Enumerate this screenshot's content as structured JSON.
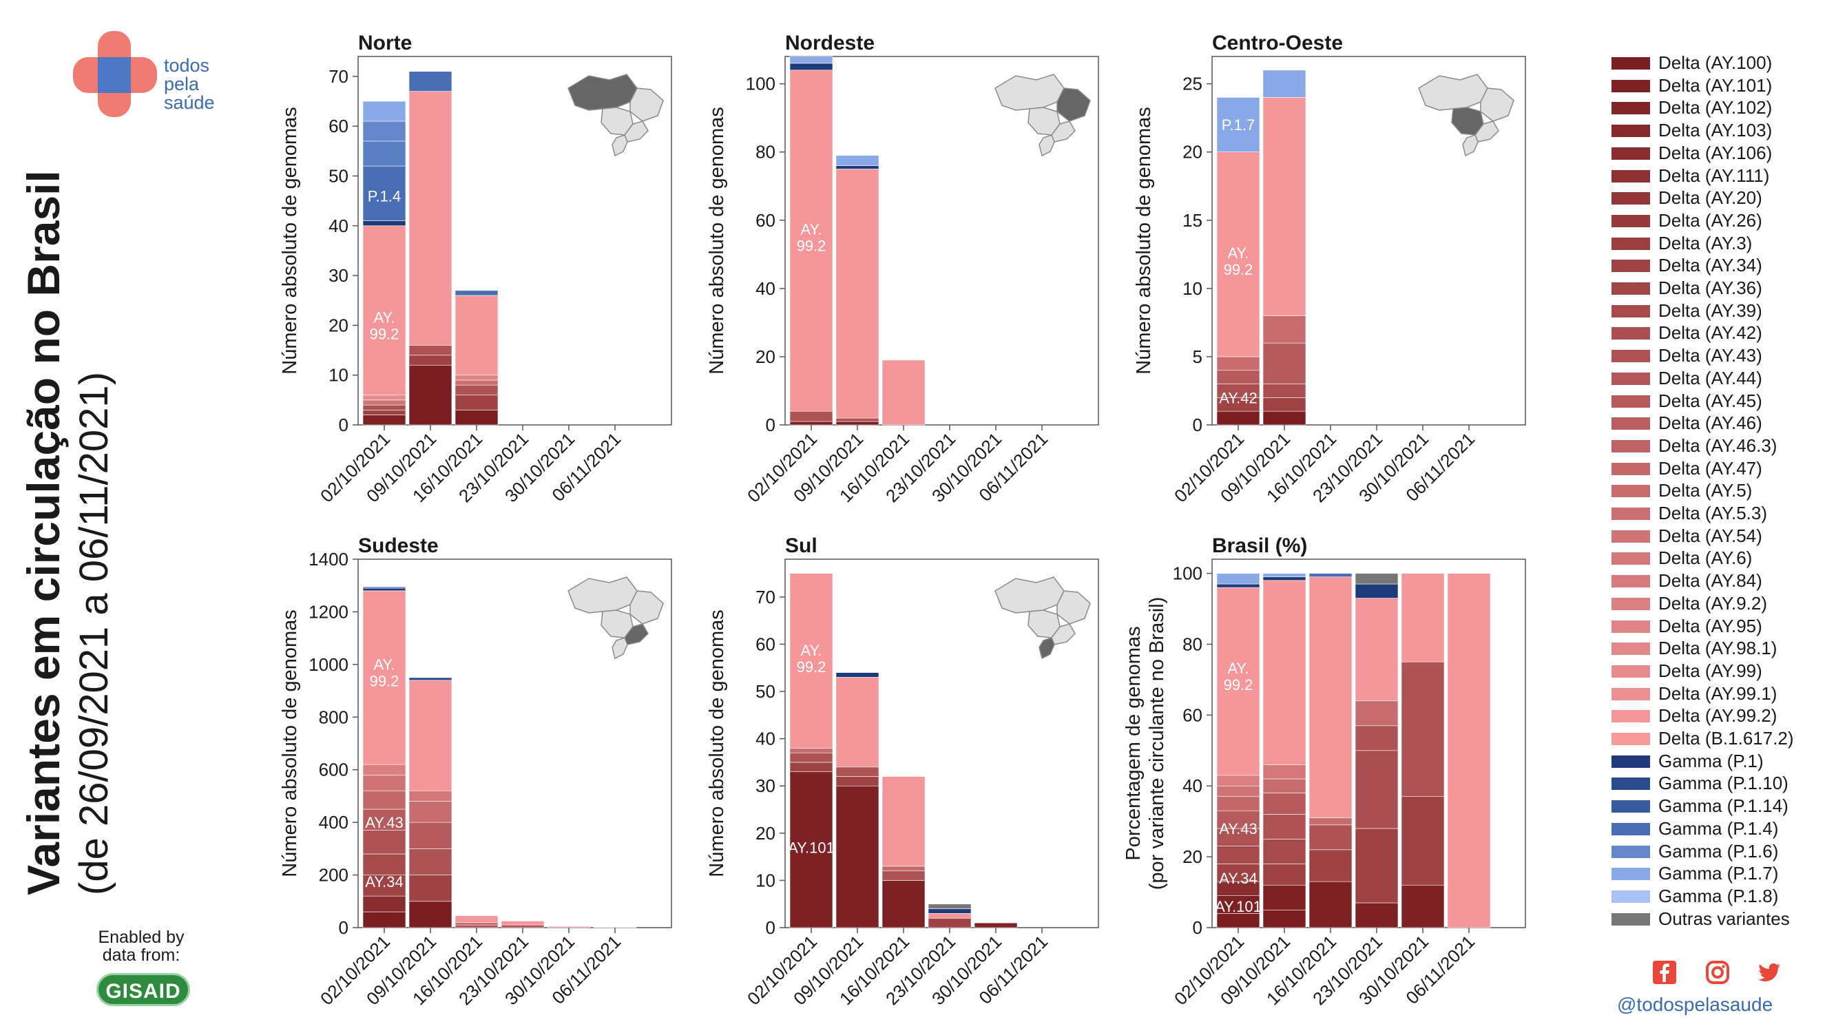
{
  "logo": {
    "line1": "todos",
    "line2": "pela",
    "line3": "saúde"
  },
  "title": {
    "line1": "Variantes em circulação no Brasil",
    "line2": "(de 26/09/2021 a 06/11/2021)"
  },
  "enabled_by": {
    "line1": "Enabled by",
    "line2": "data from:",
    "brand": "GISAID"
  },
  "social": {
    "icons": [
      "facebook-icon",
      "instagram-icon",
      "twitter-icon"
    ],
    "handle": "@todospelasaude",
    "color": "#e8473a"
  },
  "colors": {
    "delta_dark": "#7b1e22",
    "delta_light": "#f69a9a",
    "delta_992": "#f5979a",
    "gamma_dark": "#1f3a7a",
    "gamma_light": "#a8c2f5",
    "others": "#777777"
  },
  "legend": [
    {
      "label": "Delta (AY.100)",
      "color": "#7b1e22"
    },
    {
      "label": "Delta (AY.101)",
      "color": "#7e2125"
    },
    {
      "label": "Delta (AY.102)",
      "color": "#822528"
    },
    {
      "label": "Delta (AY.103)",
      "color": "#86292c"
    },
    {
      "label": "Delta (AY.106)",
      "color": "#8a2d30"
    },
    {
      "label": "Delta (AY.111)",
      "color": "#8e3134"
    },
    {
      "label": "Delta (AY.20)",
      "color": "#923538"
    },
    {
      "label": "Delta (AY.26)",
      "color": "#963a3c"
    },
    {
      "label": "Delta (AY.3)",
      "color": "#9a3e40"
    },
    {
      "label": "Delta (AY.34)",
      "color": "#9e4244"
    },
    {
      "label": "Delta (AY.36)",
      "color": "#a24648"
    },
    {
      "label": "Delta (AY.39)",
      "color": "#a64b4c"
    },
    {
      "label": "Delta (AY.42)",
      "color": "#aa4f51"
    },
    {
      "label": "Delta (AY.43)",
      "color": "#ae5355"
    },
    {
      "label": "Delta (AY.44)",
      "color": "#b25759"
    },
    {
      "label": "Delta (AY.45)",
      "color": "#b65b5d"
    },
    {
      "label": "Delta (AY.46)",
      "color": "#ba5f61"
    },
    {
      "label": "Delta (AY.46.3)",
      "color": "#be6365"
    },
    {
      "label": "Delta (AY.47)",
      "color": "#c2686a"
    },
    {
      "label": "Delta (AY.5)",
      "color": "#c66c6e"
    },
    {
      "label": "Delta (AY.5.3)",
      "color": "#ca7072"
    },
    {
      "label": "Delta (AY.54)",
      "color": "#ce7476"
    },
    {
      "label": "Delta (AY.6)",
      "color": "#d2787a"
    },
    {
      "label": "Delta (AY.84)",
      "color": "#d67c7e"
    },
    {
      "label": "Delta (AY.9.2)",
      "color": "#da8082"
    },
    {
      "label": "Delta (AY.95)",
      "color": "#de8486"
    },
    {
      "label": "Delta (AY.98.1)",
      "color": "#e2888a"
    },
    {
      "label": "Delta (AY.99)",
      "color": "#e68c8e"
    },
    {
      "label": "Delta (AY.99.1)",
      "color": "#ea9092"
    },
    {
      "label": "Delta (AY.99.2)",
      "color": "#f5979a"
    },
    {
      "label": "Delta (B.1.617.2)",
      "color": "#f69a9a"
    },
    {
      "label": "Gamma (P.1)",
      "color": "#1f3a7a"
    },
    {
      "label": "Gamma (P.1.10)",
      "color": "#2a4a8c"
    },
    {
      "label": "Gamma (P.1.14)",
      "color": "#365a9e"
    },
    {
      "label": "Gamma (P.1.4)",
      "color": "#4a6eb5"
    },
    {
      "label": "Gamma (P.1.6)",
      "color": "#6487cc"
    },
    {
      "label": "Gamma (P.1.7)",
      "color": "#88a8e8"
    },
    {
      "label": "Gamma (P.1.8)",
      "color": "#a8c2f5"
    },
    {
      "label": "Outras variantes",
      "color": "#777777"
    }
  ],
  "chart_data": [
    {
      "type": "bar",
      "stacked": true,
      "title": "Norte",
      "region": "Norte",
      "ylabel": "Número absoluto de genomas",
      "ylim": [
        0,
        74
      ],
      "yticks": [
        0,
        10,
        20,
        30,
        40,
        50,
        60,
        70
      ],
      "categories": [
        "02/10/2021",
        "09/10/2021",
        "16/10/2021",
        "23/10/2021",
        "30/10/2021",
        "06/11/2021"
      ],
      "bars": [
        [
          {
            "v": 2,
            "c": "#7e2125"
          },
          {
            "v": 1,
            "c": "#9e4244"
          },
          {
            "v": 1,
            "c": "#aa4f51"
          },
          {
            "v": 1,
            "c": "#ce7476"
          },
          {
            "v": 1,
            "c": "#e68c8e"
          },
          {
            "v": 34,
            "c": "#f5979a"
          },
          {
            "v": 1,
            "c": "#1f3a7a"
          },
          {
            "v": 11,
            "c": "#4a6eb5"
          },
          {
            "v": 5,
            "c": "#5a7fc2"
          },
          {
            "v": 4,
            "c": "#6487cc"
          },
          {
            "v": 4,
            "c": "#88a8e8"
          },
          {
            "v": 0,
            "c": "#a8c2f5"
          }
        ],
        [
          {
            "v": 12,
            "c": "#7b1e22"
          },
          {
            "v": 2,
            "c": "#9e4244"
          },
          {
            "v": 2,
            "c": "#ae5355"
          },
          {
            "v": 51,
            "c": "#f5979a"
          },
          {
            "v": 4,
            "c": "#4a6eb5"
          }
        ],
        [
          {
            "v": 3,
            "c": "#7b1e22"
          },
          {
            "v": 3,
            "c": "#9e4244"
          },
          {
            "v": 2,
            "c": "#ae5355"
          },
          {
            "v": 1,
            "c": "#ca7072"
          },
          {
            "v": 1,
            "c": "#de8486"
          },
          {
            "v": 16,
            "c": "#f5979a"
          },
          {
            "v": 1,
            "c": "#4a6eb5"
          }
        ],
        [],
        [],
        []
      ],
      "labels": [
        {
          "bar": 0,
          "at": 20,
          "text": "AY.\n99.2"
        },
        {
          "bar": 0,
          "at": 46,
          "text": "P.1.4"
        }
      ]
    },
    {
      "type": "bar",
      "stacked": true,
      "title": "Nordeste",
      "region": "Nordeste",
      "ylabel": "Número absoluto de genomas",
      "ylim": [
        0,
        108
      ],
      "yticks": [
        0,
        20,
        40,
        60,
        80,
        100
      ],
      "categories": [
        "02/10/2021",
        "09/10/2021",
        "16/10/2021",
        "23/10/2021",
        "30/10/2021",
        "06/11/2021"
      ],
      "bars": [
        [
          {
            "v": 1,
            "c": "#7b1e22"
          },
          {
            "v": 3,
            "c": "#ae5355"
          },
          {
            "v": 100,
            "c": "#f5979a"
          },
          {
            "v": 2,
            "c": "#1f3a7a"
          },
          {
            "v": 2,
            "c": "#88a8e8"
          }
        ],
        [
          {
            "v": 1,
            "c": "#7b1e22"
          },
          {
            "v": 1,
            "c": "#ae5355"
          },
          {
            "v": 73,
            "c": "#f5979a"
          },
          {
            "v": 1,
            "c": "#1f3a7a"
          },
          {
            "v": 3,
            "c": "#88a8e8"
          }
        ],
        [
          {
            "v": 19,
            "c": "#f5979a"
          }
        ],
        [],
        [],
        []
      ],
      "labels": [
        {
          "bar": 0,
          "at": 55,
          "text": "AY.\n99.2"
        }
      ]
    },
    {
      "type": "bar",
      "stacked": true,
      "title": "Centro-Oeste",
      "region": "Centro-Oeste",
      "ylabel": "Número absoluto de genomas",
      "ylim": [
        0,
        27
      ],
      "yticks": [
        0,
        5,
        10,
        15,
        20,
        25
      ],
      "categories": [
        "02/10/2021",
        "09/10/2021",
        "16/10/2021",
        "23/10/2021",
        "30/10/2021",
        "06/11/2021"
      ],
      "bars": [
        [
          {
            "v": 1,
            "c": "#7b1e22"
          },
          {
            "v": 1,
            "c": "#9e4244"
          },
          {
            "v": 1,
            "c": "#aa4f51"
          },
          {
            "v": 1,
            "c": "#b65b5d"
          },
          {
            "v": 1,
            "c": "#c66c6e"
          },
          {
            "v": 15,
            "c": "#f5979a"
          },
          {
            "v": 4,
            "c": "#88a8e8"
          }
        ],
        [
          {
            "v": 1,
            "c": "#7b1e22"
          },
          {
            "v": 1,
            "c": "#9e4244"
          },
          {
            "v": 1,
            "c": "#aa4f51"
          },
          {
            "v": 3,
            "c": "#b65b5d"
          },
          {
            "v": 2,
            "c": "#c66c6e"
          },
          {
            "v": 16,
            "c": "#f5979a"
          },
          {
            "v": 2,
            "c": "#88a8e8"
          }
        ],
        [],
        [],
        [],
        []
      ],
      "labels": [
        {
          "bar": 0,
          "at": 12,
          "text": "AY.\n99.2"
        },
        {
          "bar": 0,
          "at": 2,
          "text": "AY.42"
        },
        {
          "bar": 0,
          "at": 22,
          "text": "P.1.7"
        }
      ]
    },
    {
      "type": "bar",
      "stacked": true,
      "title": "Sudeste",
      "region": "Sudeste",
      "ylabel": "Número absoluto de genomas",
      "ylim": [
        0,
        1400
      ],
      "yticks": [
        0,
        200,
        400,
        600,
        800,
        1000,
        1200,
        1400
      ],
      "categories": [
        "02/10/2021",
        "09/10/2021",
        "16/10/2021",
        "23/10/2021",
        "30/10/2021",
        "06/11/2021"
      ],
      "bars": [
        [
          {
            "v": 60,
            "c": "#7b1e22"
          },
          {
            "v": 60,
            "c": "#8a2d30"
          },
          {
            "v": 80,
            "c": "#9e4244"
          },
          {
            "v": 80,
            "c": "#a64b4c"
          },
          {
            "v": 90,
            "c": "#ae5355"
          },
          {
            "v": 80,
            "c": "#b65b5d"
          },
          {
            "v": 70,
            "c": "#c2686a"
          },
          {
            "v": 60,
            "c": "#ce7476"
          },
          {
            "v": 40,
            "c": "#da8082"
          },
          {
            "v": 660,
            "c": "#f5979a"
          },
          {
            "v": 10,
            "c": "#1f3a7a"
          },
          {
            "v": 5,
            "c": "#4a6eb5"
          }
        ],
        [
          {
            "v": 100,
            "c": "#7b1e22"
          },
          {
            "v": 100,
            "c": "#9e4244"
          },
          {
            "v": 100,
            "c": "#ae5355"
          },
          {
            "v": 100,
            "c": "#b65b5d"
          },
          {
            "v": 80,
            "c": "#c66c6e"
          },
          {
            "v": 40,
            "c": "#d2787a"
          },
          {
            "v": 420,
            "c": "#f5979a"
          },
          {
            "v": 10,
            "c": "#2a4a8c"
          }
        ],
        [
          {
            "v": 10,
            "c": "#ae5355"
          },
          {
            "v": 10,
            "c": "#c66c6e"
          },
          {
            "v": 25,
            "c": "#f5979a"
          }
        ],
        [
          {
            "v": 10,
            "c": "#ae5355"
          },
          {
            "v": 15,
            "c": "#f5979a"
          }
        ],
        [
          {
            "v": 3,
            "c": "#c66c6e"
          },
          {
            "v": 3,
            "c": "#f5979a"
          }
        ],
        [
          {
            "v": 2,
            "c": "#f5979a"
          }
        ]
      ],
      "labels": [
        {
          "bar": 0,
          "at": 970,
          "text": "AY.\n99.2"
        },
        {
          "bar": 0,
          "at": 400,
          "text": "AY.43"
        },
        {
          "bar": 0,
          "at": 175,
          "text": "AY.34"
        }
      ]
    },
    {
      "type": "bar",
      "stacked": true,
      "title": "Sul",
      "region": "Sul",
      "ylabel": "Número absoluto de genomas",
      "ylim": [
        0,
        78
      ],
      "yticks": [
        0,
        10,
        20,
        30,
        40,
        50,
        60,
        70
      ],
      "categories": [
        "02/10/2021",
        "09/10/2021",
        "16/10/2021",
        "23/10/2021",
        "30/10/2021",
        "06/11/2021"
      ],
      "bars": [
        [
          {
            "v": 33,
            "c": "#7e2125"
          },
          {
            "v": 2,
            "c": "#9e4244"
          },
          {
            "v": 2,
            "c": "#ae5355"
          },
          {
            "v": 1,
            "c": "#c66c6e"
          },
          {
            "v": 37,
            "c": "#f5979a"
          }
        ],
        [
          {
            "v": 30,
            "c": "#7e2125"
          },
          {
            "v": 2,
            "c": "#9e4244"
          },
          {
            "v": 2,
            "c": "#ae5355"
          },
          {
            "v": 19,
            "c": "#f5979a"
          },
          {
            "v": 1,
            "c": "#1f3a7a"
          }
        ],
        [
          {
            "v": 10,
            "c": "#7e2125"
          },
          {
            "v": 2,
            "c": "#ae5355"
          },
          {
            "v": 1,
            "c": "#c66c6e"
          },
          {
            "v": 19,
            "c": "#f5979a"
          }
        ],
        [
          {
            "v": 2,
            "c": "#9e4244"
          },
          {
            "v": 1,
            "c": "#f5979a"
          },
          {
            "v": 1,
            "c": "#1f3a7a"
          },
          {
            "v": 1,
            "c": "#777777"
          }
        ],
        [
          {
            "v": 1,
            "c": "#7e2125"
          }
        ],
        []
      ],
      "labels": [
        {
          "bar": 0,
          "at": 57,
          "text": "AY.\n99.2"
        },
        {
          "bar": 0,
          "at": 17,
          "text": "AY.101"
        }
      ]
    },
    {
      "type": "bar",
      "stacked": true,
      "title": "Brasil (%)",
      "region": "Brasil",
      "ylabel": "Porcentagem de genomas\n(por variante circulante no Brasil)",
      "ylim": [
        0,
        104
      ],
      "yticks": [
        0,
        20,
        40,
        60,
        80,
        100
      ],
      "categories": [
        "02/10/2021",
        "09/10/2021",
        "16/10/2021",
        "23/10/2021",
        "30/10/2021",
        "06/11/2021"
      ],
      "bars": [
        [
          {
            "v": 4,
            "c": "#7b1e22"
          },
          {
            "v": 5,
            "c": "#7e2125"
          },
          {
            "v": 4,
            "c": "#8a2d30"
          },
          {
            "v": 5,
            "c": "#9e4244"
          },
          {
            "v": 5,
            "c": "#a64b4c"
          },
          {
            "v": 5,
            "c": "#ae5355"
          },
          {
            "v": 5,
            "c": "#b65b5d"
          },
          {
            "v": 4,
            "c": "#c2686a"
          },
          {
            "v": 3,
            "c": "#ce7476"
          },
          {
            "v": 3,
            "c": "#da8082"
          },
          {
            "v": 53,
            "c": "#f5979a"
          },
          {
            "v": 1,
            "c": "#1f3a7a"
          },
          {
            "v": 3,
            "c": "#88a8e8"
          }
        ],
        [
          {
            "v": 5,
            "c": "#7b1e22"
          },
          {
            "v": 7,
            "c": "#7e2125"
          },
          {
            "v": 6,
            "c": "#9e4244"
          },
          {
            "v": 7,
            "c": "#a64b4c"
          },
          {
            "v": 7,
            "c": "#ae5355"
          },
          {
            "v": 6,
            "c": "#b65b5d"
          },
          {
            "v": 4,
            "c": "#c66c6e"
          },
          {
            "v": 4,
            "c": "#d2787a"
          },
          {
            "v": 52,
            "c": "#f5979a"
          },
          {
            "v": 1,
            "c": "#1f3a7a"
          },
          {
            "v": 1,
            "c": "#88a8e8"
          }
        ],
        [
          {
            "v": 13,
            "c": "#7e2125"
          },
          {
            "v": 9,
            "c": "#9e4244"
          },
          {
            "v": 7,
            "c": "#ae5355"
          },
          {
            "v": 2,
            "c": "#c66c6e"
          },
          {
            "v": 68,
            "c": "#f5979a"
          },
          {
            "v": 1,
            "c": "#4a6eb5"
          }
        ],
        [
          {
            "v": 7,
            "c": "#7e2125"
          },
          {
            "v": 21,
            "c": "#9e4244"
          },
          {
            "v": 22,
            "c": "#aa4f51"
          },
          {
            "v": 7,
            "c": "#ae5355"
          },
          {
            "v": 7,
            "c": "#c66c6e"
          },
          {
            "v": 29,
            "c": "#f5979a"
          },
          {
            "v": 4,
            "c": "#1f3a7a"
          },
          {
            "v": 3,
            "c": "#777777"
          }
        ],
        [
          {
            "v": 12,
            "c": "#7e2125"
          },
          {
            "v": 25,
            "c": "#9e4244"
          },
          {
            "v": 38,
            "c": "#ae5355"
          },
          {
            "v": 25,
            "c": "#f5979a"
          }
        ],
        [
          {
            "v": 100,
            "c": "#f5979a"
          }
        ]
      ],
      "labels": [
        {
          "bar": 0,
          "at": 71,
          "text": "AY.\n99.2"
        },
        {
          "bar": 0,
          "at": 28,
          "text": "AY.43"
        },
        {
          "bar": 0,
          "at": 14,
          "text": "AY.34"
        },
        {
          "bar": 0,
          "at": 6,
          "text": "AY.101"
        }
      ]
    }
  ]
}
